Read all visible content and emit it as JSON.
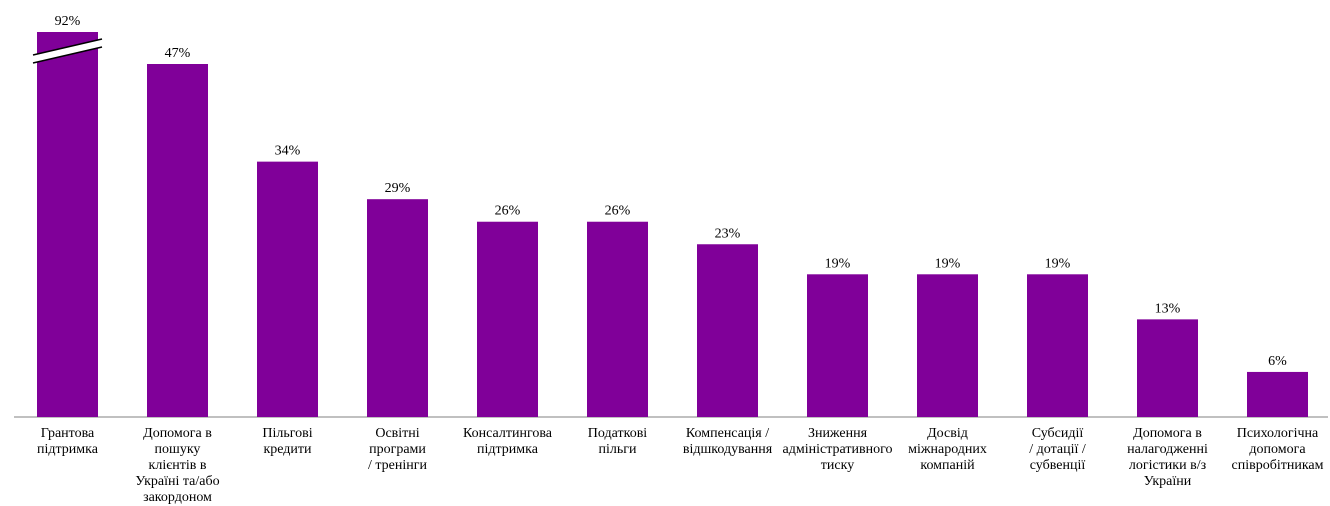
{
  "chart_data": {
    "type": "bar",
    "title": "",
    "xlabel": "",
    "ylabel": "",
    "ylim": [
      0,
      50
    ],
    "grid": false,
    "legend": "none",
    "bar_color": "#800099",
    "axis_break": {
      "category_index": 0,
      "note": "first bar truncated with break marks"
    },
    "categories": [
      [
        "Грантова",
        "підтримка"
      ],
      [
        "Допомога в",
        "пошуку",
        "клієнтів в",
        "Україні та/або",
        "закордоном"
      ],
      [
        "Пільгові",
        "кредити"
      ],
      [
        "Освітні",
        "програми",
        "/ тренінги"
      ],
      [
        "Консалтингова",
        "підтримка"
      ],
      [
        "Податкові",
        "пільги"
      ],
      [
        "Компенсація /",
        "відшкодування"
      ],
      [
        "Зниження",
        "адміністративного",
        "тиску"
      ],
      [
        "Досвід",
        "міжнародних",
        "компаній"
      ],
      [
        "Субсидії",
        "/ дотації /",
        "субвенції"
      ],
      [
        "Допомога в",
        "налагодженні",
        "логістики в/з",
        "України"
      ],
      [
        "Психологічна",
        "допомога",
        "співробітникам"
      ]
    ],
    "values": [
      92,
      47,
      34,
      29,
      26,
      26,
      23,
      19,
      19,
      19,
      13,
      6
    ],
    "value_labels": [
      "92%",
      "47%",
      "34%",
      "29%",
      "26%",
      "26%",
      "23%",
      "19%",
      "19%",
      "19%",
      "13%",
      "6%"
    ]
  }
}
